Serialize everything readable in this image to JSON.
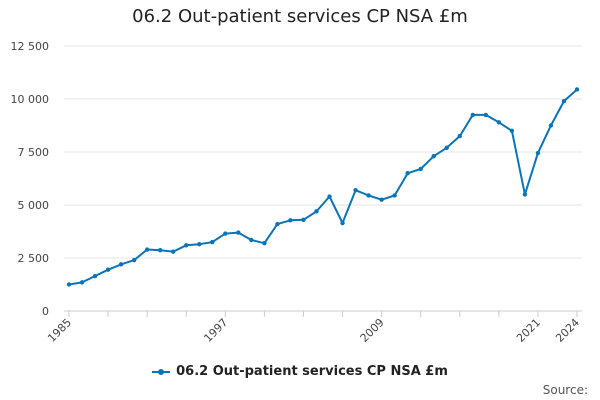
{
  "title": "06.2 Out-patient services CP NSA £m",
  "source_label": "Source:",
  "colors": {
    "series": "#0b74b8",
    "grid": "#e6e6e6",
    "axis": "#cccccc"
  },
  "chart_data": {
    "type": "line",
    "title": "06.2 Out-patient services CP NSA £m",
    "xlabel": "",
    "ylabel": "",
    "xlim": [
      1985,
      2024
    ],
    "ylim": [
      0,
      12500
    ],
    "yticks": [
      0,
      2500,
      5000,
      7500,
      10000,
      12500
    ],
    "ytick_labels": [
      "0",
      "2 500",
      "5 000",
      "7 500",
      "10 000",
      "12 500"
    ],
    "xticks": [
      1985,
      1997,
      2009,
      2021,
      2024
    ],
    "xtick_labels": [
      "1985",
      "1997",
      "2009",
      "2021",
      "2024"
    ],
    "grid": "horizontal",
    "legend_position": "bottom",
    "series": [
      {
        "name": "06.2 Out-patient services CP NSA £m",
        "x": [
          1985,
          1986,
          1987,
          1988,
          1989,
          1990,
          1991,
          1992,
          1993,
          1994,
          1995,
          1996,
          1997,
          1998,
          1999,
          2000,
          2001,
          2002,
          2003,
          2004,
          2005,
          2006,
          2007,
          2008,
          2009,
          2010,
          2011,
          2012,
          2013,
          2014,
          2015,
          2016,
          2017,
          2018,
          2019,
          2020,
          2021,
          2022,
          2023,
          2024
        ],
        "values": [
          1250,
          1350,
          1650,
          1950,
          2200,
          2400,
          2900,
          2870,
          2800,
          3100,
          3150,
          3250,
          3650,
          3700,
          3350,
          3200,
          4100,
          4280,
          4300,
          4700,
          5400,
          4150,
          5700,
          5450,
          5250,
          5450,
          6500,
          6700,
          7300,
          7700,
          8250,
          9250,
          9250,
          8900,
          8500,
          5500,
          7450,
          8750,
          9900,
          10450
        ]
      }
    ]
  }
}
